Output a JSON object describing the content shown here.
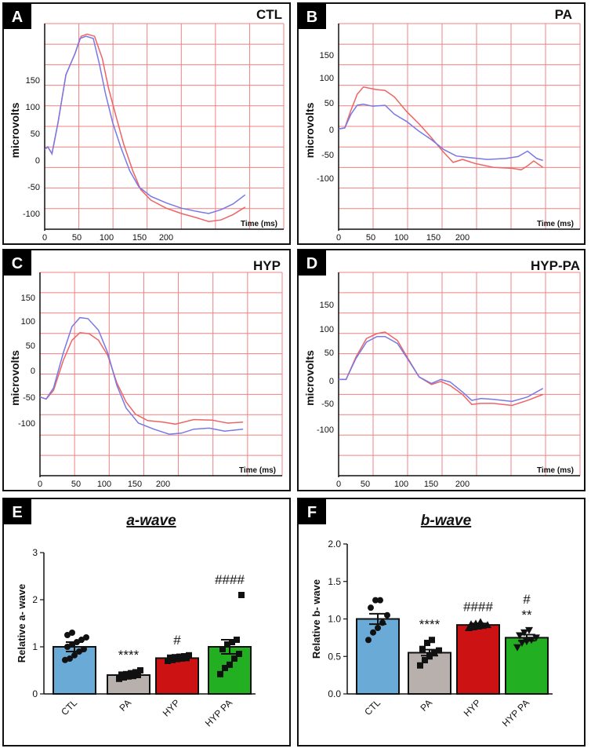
{
  "colors": {
    "grid": "#f08080",
    "red_trace": "#ee6464",
    "blue_trace": "#7878e6",
    "ctl_bar": "#6aaad6",
    "pa_bar": "#b8b0ac",
    "hyp_bar": "#cc1212",
    "hyppa_bar": "#22b022"
  },
  "chart_data": [
    {
      "type": "line",
      "panel_letter": "A",
      "title": "CTL",
      "ylabel": "microvolts",
      "xlabel": "Time (ms)",
      "x_ticks": [
        "0",
        "50",
        "100",
        "150",
        "200"
      ],
      "y_ticks": [
        "150",
        "100",
        "50",
        "0",
        "-50",
        "-100"
      ],
      "series": [
        {
          "name": "red",
          "color": "red_trace",
          "points": [
            [
              0,
              20
            ],
            [
              5,
              25
            ],
            [
              12,
              12
            ],
            [
              22,
              70
            ],
            [
              35,
              160
            ],
            [
              50,
              200
            ],
            [
              60,
              232
            ],
            [
              70,
              236
            ],
            [
              82,
              232
            ],
            [
              95,
              190
            ],
            [
              105,
              135
            ],
            [
              118,
              80
            ],
            [
              130,
              30
            ],
            [
              145,
              -20
            ],
            [
              158,
              -55
            ],
            [
              175,
              -75
            ],
            [
              200,
              -90
            ],
            [
              225,
              -100
            ],
            [
              250,
              -108
            ],
            [
              270,
              -115
            ],
            [
              290,
              -112
            ],
            [
              310,
              -102
            ],
            [
              330,
              -88
            ]
          ]
        },
        {
          "name": "blue",
          "color": "blue_trace",
          "points": [
            [
              0,
              20
            ],
            [
              5,
              25
            ],
            [
              12,
              12
            ],
            [
              22,
              70
            ],
            [
              35,
              160
            ],
            [
              50,
              200
            ],
            [
              58,
              228
            ],
            [
              68,
              232
            ],
            [
              80,
              228
            ],
            [
              90,
              180
            ],
            [
              100,
              125
            ],
            [
              112,
              70
            ],
            [
              125,
              25
            ],
            [
              140,
              -20
            ],
            [
              155,
              -50
            ],
            [
              175,
              -68
            ],
            [
              200,
              -80
            ],
            [
              225,
              -90
            ],
            [
              250,
              -96
            ],
            [
              270,
              -100
            ],
            [
              290,
              -93
            ],
            [
              310,
              -82
            ],
            [
              330,
              -65
            ]
          ]
        }
      ]
    },
    {
      "type": "line",
      "panel_letter": "B",
      "title": "PA",
      "ylabel": "microvolts",
      "xlabel": "Time (ms)",
      "x_ticks": [
        "0",
        "50",
        "100",
        "150",
        "200"
      ],
      "y_ticks": [
        "150",
        "100",
        "50",
        "0",
        "-50",
        "-100"
      ],
      "series": [
        {
          "name": "red",
          "color": "red_trace",
          "points": [
            [
              0,
              0
            ],
            [
              10,
              2
            ],
            [
              20,
              38
            ],
            [
              30,
              70
            ],
            [
              40,
              85
            ],
            [
              60,
              80
            ],
            [
              75,
              78
            ],
            [
              90,
              65
            ],
            [
              110,
              35
            ],
            [
              130,
              10
            ],
            [
              150,
              -18
            ],
            [
              168,
              -45
            ],
            [
              185,
              -68
            ],
            [
              200,
              -62
            ],
            [
              220,
              -70
            ],
            [
              250,
              -78
            ],
            [
              280,
              -80
            ],
            [
              295,
              -83
            ],
            [
              305,
              -75
            ],
            [
              315,
              -65
            ],
            [
              330,
              -78
            ]
          ]
        },
        {
          "name": "blue",
          "color": "blue_trace",
          "points": [
            [
              0,
              0
            ],
            [
              10,
              2
            ],
            [
              20,
              30
            ],
            [
              30,
              48
            ],
            [
              40,
              50
            ],
            [
              55,
              46
            ],
            [
              75,
              48
            ],
            [
              90,
              30
            ],
            [
              110,
              15
            ],
            [
              130,
              -5
            ],
            [
              150,
              -22
            ],
            [
              170,
              -42
            ],
            [
              190,
              -55
            ],
            [
              210,
              -58
            ],
            [
              240,
              -62
            ],
            [
              270,
              -60
            ],
            [
              290,
              -56
            ],
            [
              305,
              -45
            ],
            [
              320,
              -60
            ],
            [
              330,
              -64
            ]
          ]
        }
      ]
    },
    {
      "type": "line",
      "panel_letter": "C",
      "title": "HYP",
      "ylabel": "microvolts",
      "xlabel": "Time (ms)",
      "x_ticks": [
        "0",
        "50",
        "100",
        "150",
        "200"
      ],
      "y_ticks": [
        "150",
        "100",
        "50",
        "0",
        "-50",
        "-100"
      ],
      "series": [
        {
          "name": "red",
          "color": "red_trace",
          "points": [
            [
              0,
              -48
            ],
            [
              10,
              -52
            ],
            [
              22,
              -35
            ],
            [
              38,
              25
            ],
            [
              52,
              65
            ],
            [
              65,
              80
            ],
            [
              80,
              78
            ],
            [
              95,
              65
            ],
            [
              110,
              35
            ],
            [
              125,
              -20
            ],
            [
              140,
              -58
            ],
            [
              155,
              -82
            ],
            [
              175,
              -95
            ],
            [
              200,
              -98
            ],
            [
              220,
              -102
            ],
            [
              250,
              -93
            ],
            [
              280,
              -94
            ],
            [
              305,
              -100
            ],
            [
              330,
              -98
            ]
          ]
        },
        {
          "name": "blue",
          "color": "blue_trace",
          "points": [
            [
              0,
              -48
            ],
            [
              10,
              -52
            ],
            [
              22,
              -30
            ],
            [
              38,
              40
            ],
            [
              52,
              92
            ],
            [
              65,
              110
            ],
            [
              78,
              108
            ],
            [
              95,
              85
            ],
            [
              110,
              40
            ],
            [
              125,
              -25
            ],
            [
              140,
              -70
            ],
            [
              160,
              -100
            ],
            [
              185,
              -112
            ],
            [
              210,
              -122
            ],
            [
              230,
              -120
            ],
            [
              250,
              -112
            ],
            [
              275,
              -110
            ],
            [
              300,
              -116
            ],
            [
              330,
              -112
            ]
          ]
        }
      ]
    },
    {
      "type": "line",
      "panel_letter": "D",
      "title": "HYP-PA",
      "ylabel": "microvolts",
      "xlabel": "Time (ms)",
      "x_ticks": [
        "0",
        "50",
        "100",
        "150",
        "200"
      ],
      "y_ticks": [
        "150",
        "100",
        "50",
        "0",
        "-50",
        "-100"
      ],
      "series": [
        {
          "name": "red",
          "color": "red_trace",
          "points": [
            [
              0,
              0
            ],
            [
              12,
              0
            ],
            [
              28,
              45
            ],
            [
              45,
              82
            ],
            [
              62,
              92
            ],
            [
              75,
              95
            ],
            [
              95,
              78
            ],
            [
              112,
              42
            ],
            [
              130,
              5
            ],
            [
              150,
              -10
            ],
            [
              165,
              -4
            ],
            [
              180,
              -12
            ],
            [
              200,
              -30
            ],
            [
              215,
              -50
            ],
            [
              230,
              -48
            ],
            [
              250,
              -48
            ],
            [
              280,
              -52
            ],
            [
              305,
              -42
            ],
            [
              330,
              -30
            ]
          ]
        },
        {
          "name": "blue",
          "color": "blue_trace",
          "points": [
            [
              0,
              0
            ],
            [
              12,
              0
            ],
            [
              28,
              42
            ],
            [
              45,
              75
            ],
            [
              62,
              86
            ],
            [
              75,
              86
            ],
            [
              95,
              72
            ],
            [
              112,
              40
            ],
            [
              130,
              5
            ],
            [
              150,
              -8
            ],
            [
              165,
              0
            ],
            [
              180,
              -5
            ],
            [
              200,
              -25
            ],
            [
              215,
              -42
            ],
            [
              230,
              -38
            ],
            [
              250,
              -40
            ],
            [
              280,
              -44
            ],
            [
              305,
              -35
            ],
            [
              330,
              -18
            ]
          ]
        }
      ]
    },
    {
      "type": "bar",
      "panel_letter": "E",
      "title": "a-wave",
      "ylabel": "Relative a- wave",
      "categories": [
        "CTL",
        "PA",
        "HYP",
        "HYP PA"
      ],
      "values": [
        1.0,
        0.4,
        0.76,
        1.0
      ],
      "errors": [
        0.1,
        0.03,
        0.03,
        0.15
      ],
      "bar_colors": [
        "ctl_bar",
        "pa_bar",
        "hyp_bar",
        "hyppa_bar"
      ],
      "markers": [
        "circle",
        "square",
        "square",
        "square"
      ],
      "points": [
        [
          0.72,
          0.75,
          0.82,
          0.9,
          0.95,
          1.0,
          1.05,
          1.1,
          1.15,
          1.2,
          1.25,
          1.3
        ],
        [
          0.32,
          0.35,
          0.37,
          0.38,
          0.4,
          0.41,
          0.42,
          0.44,
          0.46,
          0.5
        ],
        [
          0.7,
          0.72,
          0.74,
          0.75,
          0.76,
          0.77,
          0.78,
          0.79,
          0.8,
          0.82
        ],
        [
          0.42,
          0.55,
          0.62,
          0.75,
          0.85,
          0.95,
          1.05,
          1.1,
          1.15,
          2.1
        ]
      ],
      "annotations": [
        {
          "index": 1,
          "lines": [
            "****"
          ]
        },
        {
          "index": 2,
          "lines": [
            "#"
          ]
        },
        {
          "index": 3,
          "lines": [
            "####"
          ]
        }
      ],
      "y_ticks": [
        "0",
        "1",
        "2",
        "3"
      ],
      "ylim": [
        0,
        3
      ]
    },
    {
      "type": "bar",
      "panel_letter": "F",
      "title": "b-wave",
      "ylabel": "Relative b- wave",
      "categories": [
        "CTL",
        "PA",
        "HYP",
        "HYP PA"
      ],
      "values": [
        1.0,
        0.55,
        0.92,
        0.75
      ],
      "errors": [
        0.07,
        0.04,
        0.02,
        0.04
      ],
      "bar_colors": [
        "ctl_bar",
        "pa_bar",
        "hyp_bar",
        "hyppa_bar"
      ],
      "markers": [
        "circle",
        "square",
        "triangle",
        "triangle-down"
      ],
      "points": [
        [
          0.72,
          0.82,
          0.88,
          0.95,
          1.05,
          1.15,
          1.25,
          1.25
        ],
        [
          0.38,
          0.45,
          0.5,
          0.55,
          0.58,
          0.6,
          0.68,
          0.72
        ],
        [
          0.88,
          0.89,
          0.9,
          0.91,
          0.92,
          0.93,
          0.94,
          0.96
        ],
        [
          0.62,
          0.68,
          0.7,
          0.72,
          0.75,
          0.78,
          0.82,
          0.85
        ]
      ],
      "annotations": [
        {
          "index": 1,
          "lines": [
            "****"
          ]
        },
        {
          "index": 2,
          "lines": [
            "####"
          ]
        },
        {
          "index": 3,
          "lines": [
            "#",
            "**"
          ]
        }
      ],
      "y_ticks": [
        "0.0",
        "0.5",
        "1.0",
        "1.5",
        "2.0"
      ],
      "ylim": [
        0,
        2.0
      ]
    }
  ]
}
